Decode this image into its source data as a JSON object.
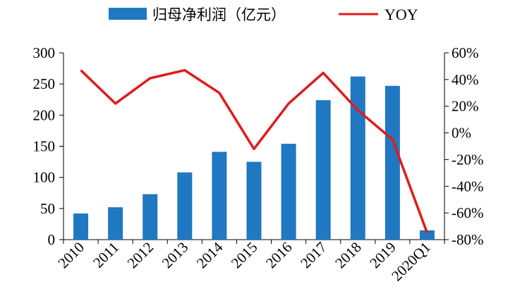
{
  "chart_data": {
    "type": "bar",
    "categories": [
      "2010",
      "2011",
      "2012",
      "2013",
      "2014",
      "2015",
      "2016",
      "2017",
      "2018",
      "2019",
      "2020Q1"
    ],
    "series": [
      {
        "name": "归母净利润（亿元）",
        "type": "bar",
        "axis": "left",
        "color": "#1f78c1",
        "values": [
          42,
          52,
          73,
          108,
          141,
          125,
          154,
          224,
          262,
          247,
          15
        ]
      },
      {
        "name": "YOY",
        "type": "line",
        "axis": "right",
        "color": "#e01b1b",
        "values": [
          47,
          22,
          41,
          47,
          30,
          -12,
          22,
          45,
          17,
          -5,
          -75
        ]
      }
    ],
    "y_left": {
      "min": 0,
      "max": 300,
      "ticks": [
        "0",
        "50",
        "100",
        "150",
        "200",
        "250",
        "300"
      ]
    },
    "y_right": {
      "min": -80,
      "max": 60,
      "ticks": [
        "-80%",
        "-60%",
        "-40%",
        "-20%",
        "0%",
        "20%",
        "40%",
        "60%"
      ]
    },
    "grid": false,
    "legend_position": "top"
  }
}
